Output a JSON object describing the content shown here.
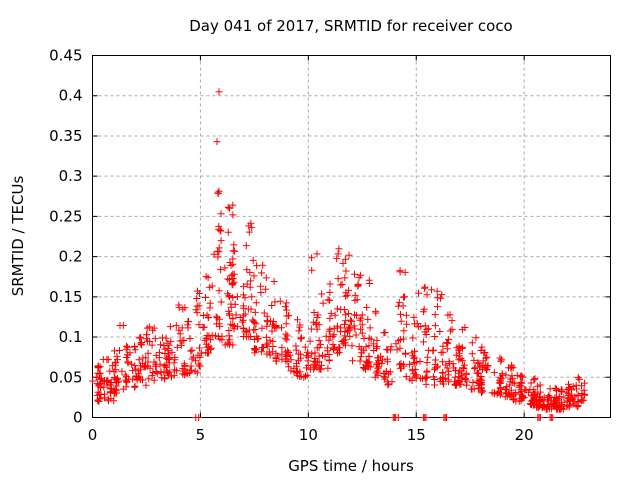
{
  "chart_data": {
    "type": "scatter",
    "title": "Day 041 of 2017, SRMTID for receiver coco",
    "xlabel": "GPS time / hours",
    "ylabel": "SRMTID / TECUs",
    "xlim": [
      0,
      24
    ],
    "ylim": [
      0,
      0.45
    ],
    "xticks": [
      0,
      5,
      10,
      15,
      20
    ],
    "xtick_labels": [
      "0",
      "5",
      "10",
      "15",
      "20"
    ],
    "yticks": [
      0,
      0.05,
      0.1,
      0.15,
      0.2,
      0.25,
      0.3,
      0.35,
      0.4,
      0.45
    ],
    "ytick_labels": [
      "0",
      "0.05",
      "0.1",
      "0.15",
      "0.2",
      "0.25",
      "0.3",
      "0.35",
      "0.4",
      "0.45"
    ],
    "grid": {
      "show": true,
      "color": "#a9a9a9",
      "dash": "3,3"
    },
    "marker": {
      "shape": "plus",
      "color": "#ff0000",
      "size": 7
    },
    "legend": "none",
    "series": [
      {
        "name": "SRMTID",
        "envelope_bins": [
          [
            0.0,
            0.5,
            0.02,
            0.065,
            26
          ],
          [
            0.5,
            1.0,
            0.02,
            0.075,
            26
          ],
          [
            1.0,
            1.5,
            0.03,
            0.125,
            28
          ],
          [
            1.5,
            2.0,
            0.035,
            0.095,
            26
          ],
          [
            2.0,
            2.5,
            0.04,
            0.1,
            26
          ],
          [
            2.5,
            3.0,
            0.045,
            0.12,
            26
          ],
          [
            3.0,
            3.5,
            0.048,
            0.1,
            24
          ],
          [
            3.5,
            4.0,
            0.05,
            0.115,
            24
          ],
          [
            4.0,
            4.5,
            0.05,
            0.145,
            26
          ],
          [
            4.5,
            5.0,
            0.055,
            0.16,
            26
          ],
          [
            5.0,
            5.5,
            0.08,
            0.185,
            26
          ],
          [
            5.5,
            6.0,
            0.095,
            0.285,
            30
          ],
          [
            6.0,
            6.5,
            0.09,
            0.265,
            30
          ],
          [
            6.5,
            7.0,
            0.11,
            0.27,
            30
          ],
          [
            7.0,
            7.5,
            0.1,
            0.245,
            28
          ],
          [
            7.5,
            8.0,
            0.08,
            0.2,
            26
          ],
          [
            8.0,
            8.5,
            0.075,
            0.175,
            26
          ],
          [
            8.5,
            9.0,
            0.07,
            0.145,
            24
          ],
          [
            9.0,
            9.5,
            0.055,
            0.13,
            24
          ],
          [
            9.5,
            10.0,
            0.05,
            0.115,
            24
          ],
          [
            10.0,
            10.5,
            0.06,
            0.205,
            26
          ],
          [
            10.5,
            11.0,
            0.06,
            0.155,
            26
          ],
          [
            11.0,
            11.5,
            0.08,
            0.21,
            30
          ],
          [
            11.5,
            12.0,
            0.09,
            0.205,
            30
          ],
          [
            12.0,
            12.5,
            0.07,
            0.19,
            28
          ],
          [
            12.5,
            13.0,
            0.06,
            0.175,
            26
          ],
          [
            13.0,
            13.5,
            0.05,
            0.135,
            24
          ],
          [
            13.5,
            14.0,
            0.04,
            0.11,
            22
          ],
          [
            14.0,
            14.5,
            0.05,
            0.19,
            24
          ],
          [
            14.5,
            15.0,
            0.045,
            0.13,
            22
          ],
          [
            15.0,
            15.5,
            0.04,
            0.175,
            24
          ],
          [
            15.5,
            16.0,
            0.04,
            0.16,
            24
          ],
          [
            16.0,
            16.5,
            0.04,
            0.155,
            26
          ],
          [
            16.5,
            17.0,
            0.04,
            0.13,
            26
          ],
          [
            17.0,
            17.5,
            0.04,
            0.115,
            26
          ],
          [
            17.5,
            18.0,
            0.035,
            0.1,
            26
          ],
          [
            18.0,
            18.5,
            0.03,
            0.09,
            26
          ],
          [
            18.5,
            19.0,
            0.028,
            0.075,
            26
          ],
          [
            19.0,
            19.5,
            0.025,
            0.065,
            26
          ],
          [
            19.5,
            20.0,
            0.02,
            0.055,
            28
          ],
          [
            20.0,
            20.5,
            0.015,
            0.05,
            28
          ],
          [
            20.5,
            21.0,
            0.012,
            0.042,
            30
          ],
          [
            21.0,
            21.5,
            0.01,
            0.038,
            30
          ],
          [
            21.5,
            22.0,
            0.01,
            0.035,
            30
          ],
          [
            22.0,
            22.5,
            0.013,
            0.042,
            30
          ],
          [
            22.5,
            22.8,
            0.02,
            0.05,
            16
          ]
        ],
        "outlier_points": [
          [
            5.77,
            0.343
          ],
          [
            5.86,
            0.405
          ]
        ],
        "zero_points": [
          4.78,
          4.92,
          13.93,
          13.99,
          14.05,
          14.17,
          15.33,
          15.39,
          15.45,
          16.28,
          16.34,
          16.4,
          20.63,
          20.69,
          20.75,
          21.2,
          21.26,
          21.32
        ]
      }
    ],
    "render_seed": 20170041
  }
}
